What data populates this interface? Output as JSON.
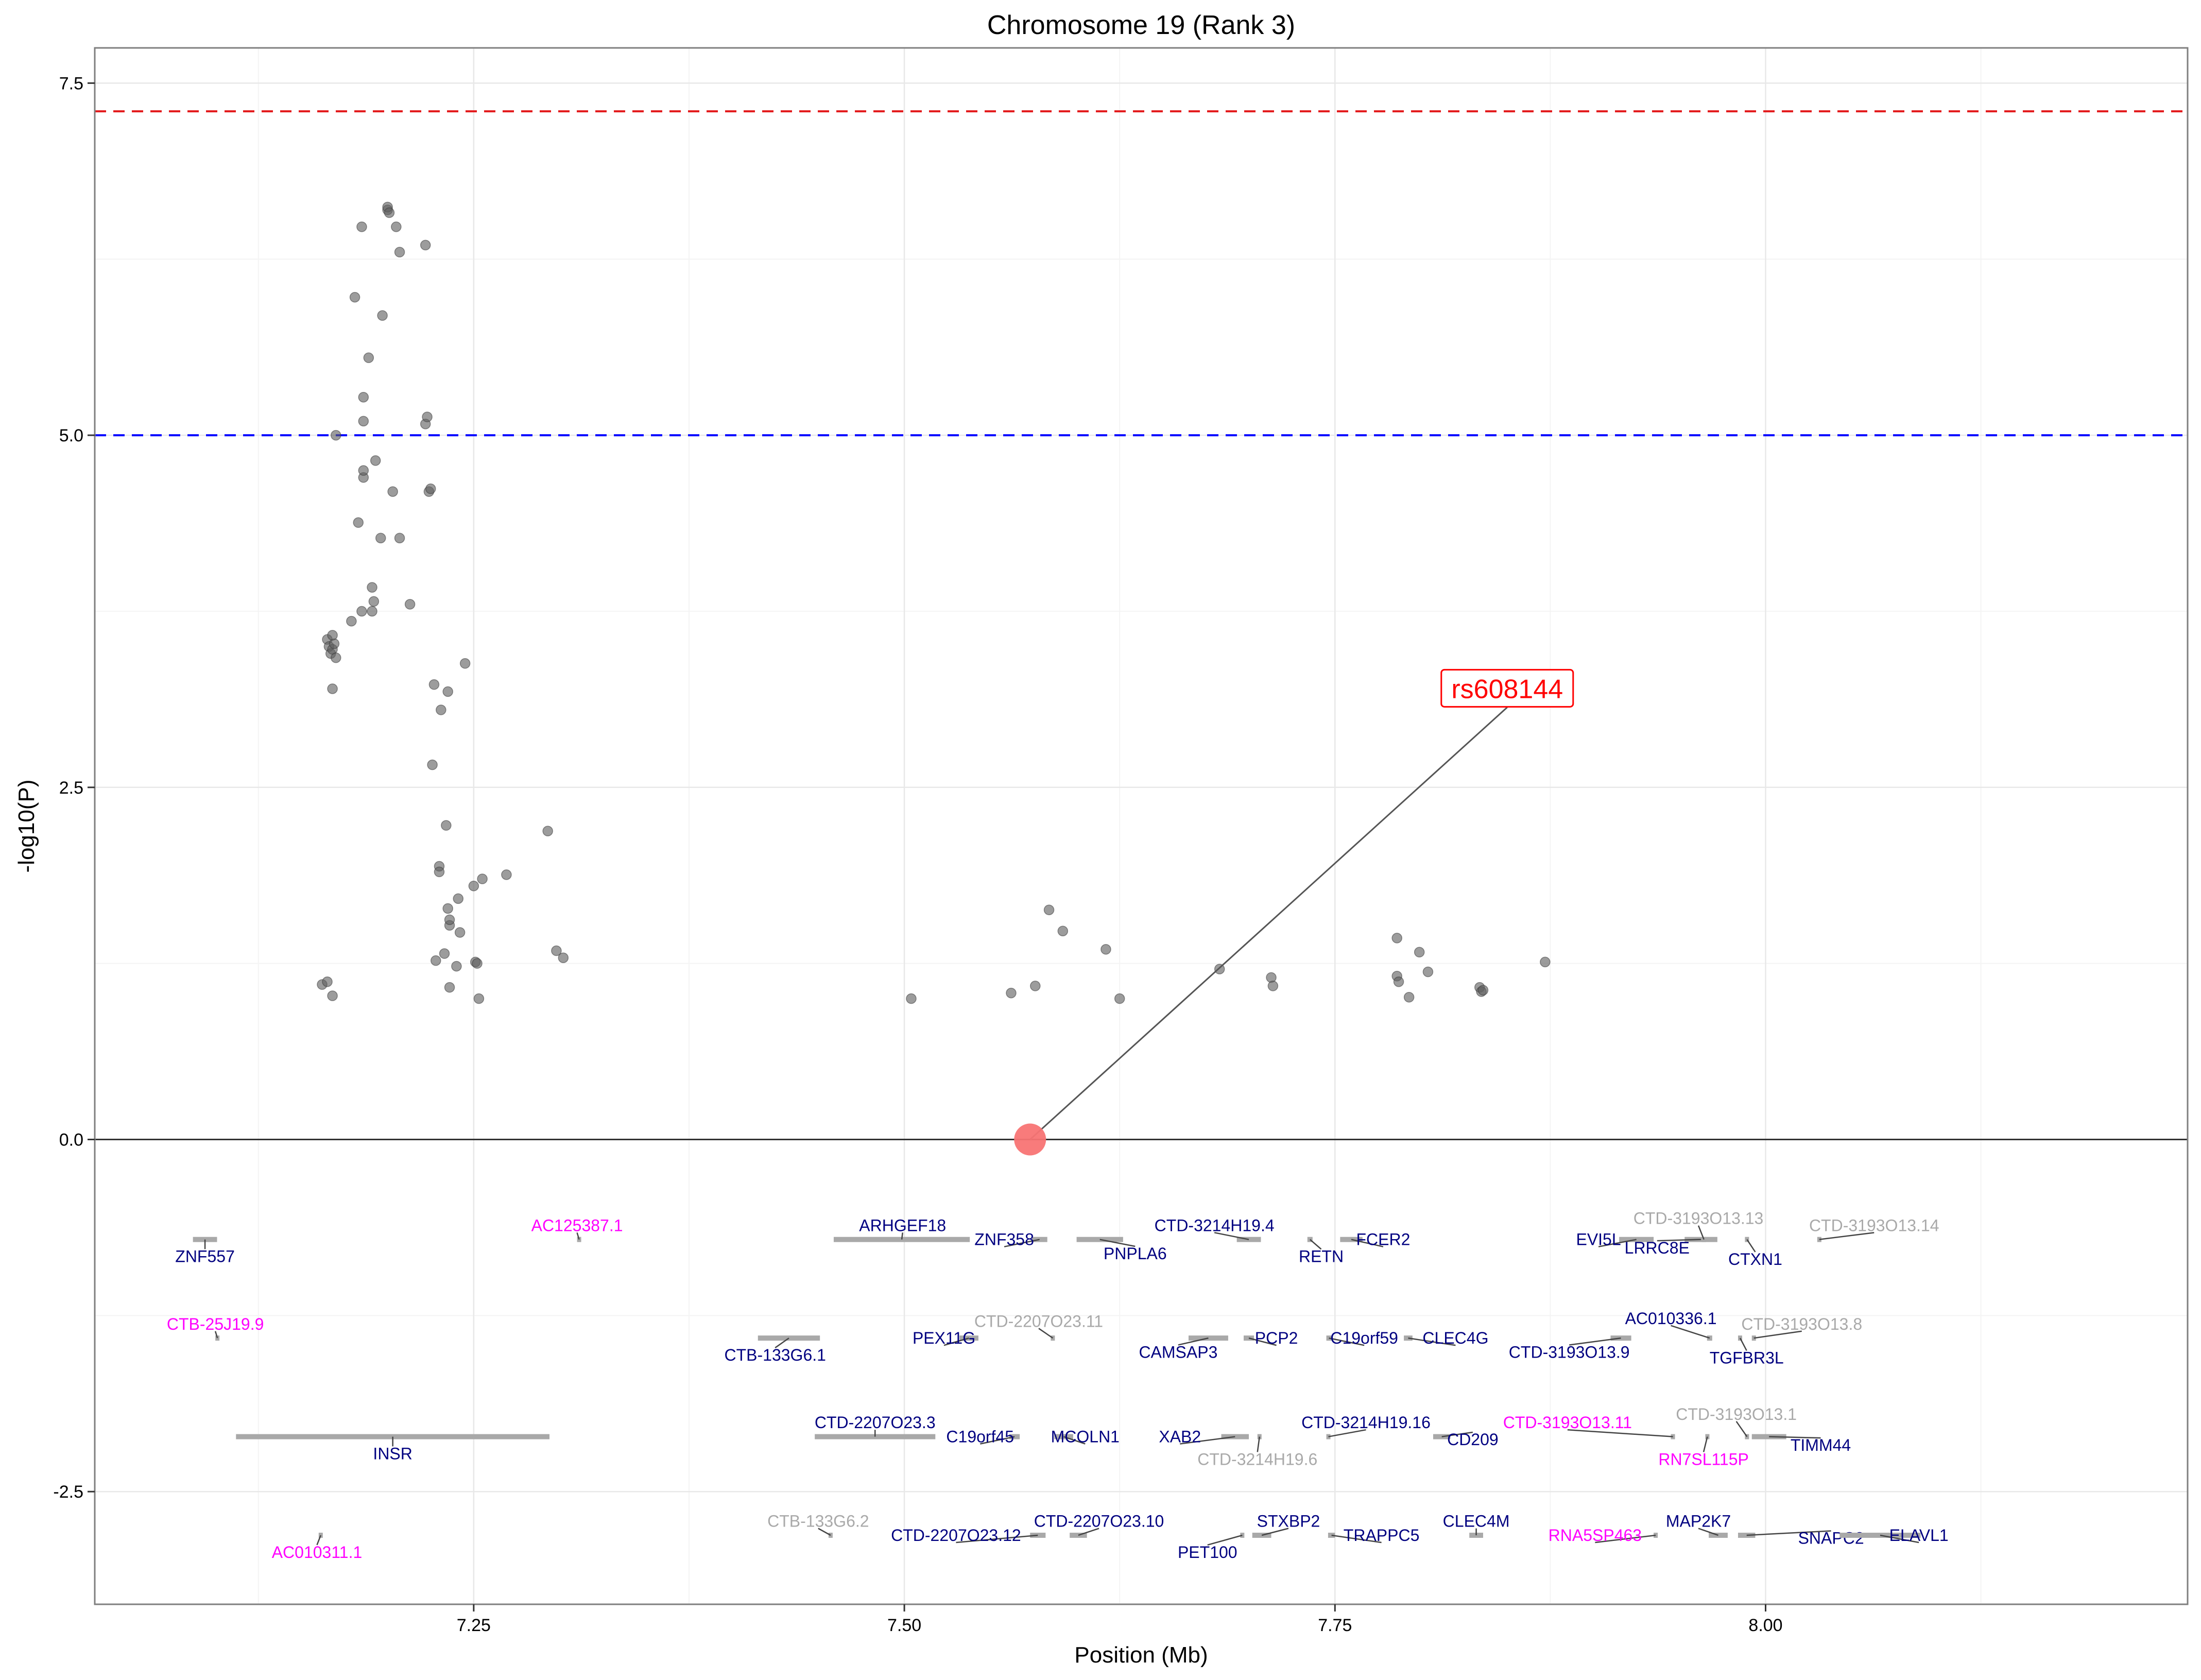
{
  "chart_data": {
    "type": "scatter",
    "title": "Chromosome 19 (Rank 3)",
    "xlabel": "Position (Mb)",
    "ylabel": "-log10(P)",
    "xlim": [
      7.03,
      8.245
    ],
    "ylim": [
      -3.3,
      7.75
    ],
    "x_ticks": [
      7.25,
      7.5,
      7.75,
      8.0
    ],
    "x_tick_labels": [
      "7.25",
      "7.50",
      "7.75",
      "8.00"
    ],
    "y_ticks": [
      -2.5,
      0.0,
      2.5,
      5.0,
      7.5
    ],
    "y_tick_labels": [
      "-2.5",
      "0.0",
      "2.5",
      "5.0",
      "7.5"
    ],
    "grid": true,
    "thresholds": [
      {
        "value": 7.3,
        "color": "#e31a1c",
        "style": "dashed"
      },
      {
        "value": 5.0,
        "color": "#0000ff",
        "style": "dashed"
      }
    ],
    "baseline": 0,
    "lead_snp": {
      "label": "rs608144",
      "x": 7.573,
      "y": 0.0,
      "label_x": 7.85,
      "label_y": 3.2,
      "color": "#f87474"
    },
    "colors": {
      "point": "#5f5f5f",
      "known_gene": "#000080",
      "novel_gene": "#ff00ff",
      "other_gene": "#a9a9a9",
      "gene_bar": "#a9a9a9",
      "label": "#ff0000"
    },
    "points": [
      [
        7.162,
        1.1
      ],
      [
        7.165,
        1.12
      ],
      [
        7.168,
        1.02
      ],
      [
        7.165,
        3.55
      ],
      [
        7.166,
        3.5
      ],
      [
        7.167,
        3.45
      ],
      [
        7.168,
        3.48
      ],
      [
        7.169,
        3.52
      ],
      [
        7.17,
        3.42
      ],
      [
        7.168,
        3.2
      ],
      [
        7.168,
        3.58
      ],
      [
        7.17,
        5.0
      ],
      [
        7.179,
        3.68
      ],
      [
        7.181,
        5.98
      ],
      [
        7.185,
        3.75
      ],
      [
        7.183,
        4.38
      ],
      [
        7.186,
        4.7
      ],
      [
        7.186,
        4.75
      ],
      [
        7.186,
        5.1
      ],
      [
        7.186,
        5.27
      ],
      [
        7.185,
        6.48
      ],
      [
        7.189,
        5.55
      ],
      [
        7.191,
        3.92
      ],
      [
        7.191,
        3.75
      ],
      [
        7.192,
        3.82
      ],
      [
        7.193,
        4.82
      ],
      [
        7.196,
        4.27
      ],
      [
        7.197,
        5.85
      ],
      [
        7.2,
        6.6
      ],
      [
        7.2,
        6.62
      ],
      [
        7.201,
        6.58
      ],
      [
        7.203,
        4.6
      ],
      [
        7.205,
        6.48
      ],
      [
        7.207,
        6.3
      ],
      [
        7.207,
        4.27
      ],
      [
        7.213,
        3.8
      ],
      [
        7.222,
        6.35
      ],
      [
        7.222,
        5.08
      ],
      [
        7.223,
        5.13
      ],
      [
        7.224,
        4.6
      ],
      [
        7.225,
        4.62
      ],
      [
        7.226,
        2.66
      ],
      [
        7.227,
        3.23
      ],
      [
        7.228,
        1.27
      ],
      [
        7.23,
        1.94
      ],
      [
        7.23,
        1.9
      ],
      [
        7.231,
        3.05
      ],
      [
        7.233,
        1.32
      ],
      [
        7.234,
        2.23
      ],
      [
        7.235,
        3.18
      ],
      [
        7.235,
        1.64
      ],
      [
        7.236,
        1.52
      ],
      [
        7.236,
        1.56
      ],
      [
        7.236,
        1.08
      ],
      [
        7.24,
        1.23
      ],
      [
        7.241,
        1.71
      ],
      [
        7.242,
        1.47
      ],
      [
        7.245,
        3.38
      ],
      [
        7.25,
        1.8
      ],
      [
        7.251,
        1.26
      ],
      [
        7.252,
        1.25
      ],
      [
        7.253,
        1.0
      ],
      [
        7.255,
        1.85
      ],
      [
        7.269,
        1.88
      ],
      [
        7.293,
        2.19
      ],
      [
        7.298,
        1.34
      ],
      [
        7.302,
        1.29
      ],
      [
        7.504,
        1.0
      ],
      [
        7.562,
        1.04
      ],
      [
        7.576,
        1.09
      ],
      [
        7.584,
        1.63
      ],
      [
        7.592,
        1.48
      ],
      [
        7.617,
        1.35
      ],
      [
        7.625,
        1.0
      ],
      [
        7.683,
        1.21
      ],
      [
        7.713,
        1.15
      ],
      [
        7.714,
        1.09
      ],
      [
        7.786,
        1.43
      ],
      [
        7.786,
        1.16
      ],
      [
        7.787,
        1.12
      ],
      [
        7.793,
        1.01
      ],
      [
        7.799,
        1.33
      ],
      [
        7.804,
        1.19
      ],
      [
        7.834,
        1.08
      ],
      [
        7.835,
        1.05
      ],
      [
        7.836,
        1.06
      ],
      [
        7.872,
        1.26
      ]
    ],
    "genes": [
      {
        "name": "ZNF557",
        "start": 7.087,
        "end": 7.101,
        "row": 1,
        "label_x": 7.094,
        "label_y": -0.83,
        "color": "#000080"
      },
      {
        "name": "AC125387.1",
        "start": 7.31,
        "end": 7.31,
        "row": 1,
        "label_x": 7.31,
        "label_y": -0.61,
        "color": "#ff00ff"
      },
      {
        "name": "ARHGEF18",
        "start": 7.459,
        "end": 7.538,
        "row": 1,
        "label_x": 7.499,
        "label_y": -0.61,
        "color": "#000080"
      },
      {
        "name": "ZNF358",
        "start": 7.574,
        "end": 7.583,
        "row": 1,
        "label_x": 7.558,
        "label_y": -0.71,
        "color": "#000080"
      },
      {
        "name": "PNPLA6",
        "start": 7.6,
        "end": 7.627,
        "row": 1,
        "label_x": 7.634,
        "label_y": -0.81,
        "color": "#000080"
      },
      {
        "name": "CTD-3214H19.4",
        "start": 7.693,
        "end": 7.707,
        "row": 1,
        "label_x": 7.68,
        "label_y": -0.61,
        "color": "#000080"
      },
      {
        "name": "RETN",
        "start": 7.734,
        "end": 7.737,
        "row": 1,
        "label_x": 7.742,
        "label_y": -0.83,
        "color": "#000080"
      },
      {
        "name": "FCER2",
        "start": 7.753,
        "end": 7.766,
        "row": 1,
        "label_x": 7.778,
        "label_y": -0.71,
        "color": "#000080"
      },
      {
        "name": "EVI5L",
        "start": 7.915,
        "end": 7.935,
        "row": 1,
        "label_x": 7.903,
        "label_y": -0.71,
        "color": "#000080"
      },
      {
        "name": "LRRC8E",
        "start": 7.953,
        "end": 7.972,
        "row": 1,
        "label_x": 7.937,
        "label_y": -0.77,
        "color": "#000080"
      },
      {
        "name": "CTD-3193O13.13",
        "start": 7.963,
        "end": 7.963,
        "row": 1,
        "label_x": 7.961,
        "label_y": -0.56,
        "color": "#a9a9a9"
      },
      {
        "name": "CTXN1",
        "start": 7.988,
        "end": 7.99,
        "row": 1,
        "label_x": 7.994,
        "label_y": -0.85,
        "color": "#000080"
      },
      {
        "name": "CTD-3193O13.14",
        "start": 8.03,
        "end": 8.03,
        "row": 1,
        "label_x": 8.063,
        "label_y": -0.61,
        "color": "#a9a9a9"
      },
      {
        "name": "CTB-25J19.9",
        "start": 7.1,
        "end": 7.1,
        "row": 2,
        "label_x": 7.1,
        "label_y": -1.31,
        "color": "#ff00ff"
      },
      {
        "name": "CTB-133G6.1",
        "start": 7.415,
        "end": 7.451,
        "row": 2,
        "label_x": 7.425,
        "label_y": -1.53,
        "color": "#000080"
      },
      {
        "name": "PEX11G",
        "start": 7.532,
        "end": 7.543,
        "row": 2,
        "label_x": 7.523,
        "label_y": -1.41,
        "color": "#000080"
      },
      {
        "name": "CTD-2207O23.11",
        "start": 7.585,
        "end": 7.585,
        "row": 2,
        "label_x": 7.578,
        "label_y": -1.29,
        "color": "#a9a9a9"
      },
      {
        "name": "CAMSAP3",
        "start": 7.665,
        "end": 7.688,
        "row": 2,
        "label_x": 7.659,
        "label_y": -1.51,
        "color": "#000080"
      },
      {
        "name": "PCP2",
        "start": 7.697,
        "end": 7.703,
        "row": 2,
        "label_x": 7.716,
        "label_y": -1.41,
        "color": "#000080"
      },
      {
        "name": "C19orf59",
        "start": 7.745,
        "end": 7.748,
        "row": 2,
        "label_x": 7.767,
        "label_y": -1.41,
        "color": "#000080"
      },
      {
        "name": "CLEC4G",
        "start": 7.79,
        "end": 7.795,
        "row": 2,
        "label_x": 7.82,
        "label_y": -1.41,
        "color": "#000080"
      },
      {
        "name": "CTD-3193O13.9",
        "start": 7.91,
        "end": 7.922,
        "row": 2,
        "label_x": 7.886,
        "label_y": -1.51,
        "color": "#000080"
      },
      {
        "name": "AC010336.1",
        "start": 7.966,
        "end": 7.969,
        "row": 2,
        "label_x": 7.945,
        "label_y": -1.27,
        "color": "#000080"
      },
      {
        "name": "TGFBR3L",
        "start": 7.984,
        "end": 7.986,
        "row": 2,
        "label_x": 7.989,
        "label_y": -1.55,
        "color": "#000080"
      },
      {
        "name": "CTD-3193O13.8",
        "start": 7.992,
        "end": 7.992,
        "row": 2,
        "label_x": 8.021,
        "label_y": -1.31,
        "color": "#a9a9a9"
      },
      {
        "name": "INSR",
        "start": 7.112,
        "end": 7.294,
        "row": 3,
        "label_x": 7.203,
        "label_y": -2.23,
        "color": "#000080"
      },
      {
        "name": "CTD-2207O23.3",
        "start": 7.448,
        "end": 7.518,
        "row": 3,
        "label_x": 7.483,
        "label_y": -2.01,
        "color": "#000080"
      },
      {
        "name": "C19orf45",
        "start": 7.561,
        "end": 7.567,
        "row": 3,
        "label_x": 7.544,
        "label_y": -2.11,
        "color": "#000080"
      },
      {
        "name": "MCOLN1",
        "start": 7.587,
        "end": 7.598,
        "row": 3,
        "label_x": 7.605,
        "label_y": -2.11,
        "color": "#000080"
      },
      {
        "name": "XAB2",
        "start": 7.684,
        "end": 7.7,
        "row": 3,
        "label_x": 7.66,
        "label_y": -2.11,
        "color": "#000080"
      },
      {
        "name": "CTD-3214H19.6",
        "start": 7.705,
        "end": 7.705,
        "row": 3,
        "label_x": 7.705,
        "label_y": -2.27,
        "color": "#a9a9a9"
      },
      {
        "name": "CTD-3214H19.16",
        "start": 7.745,
        "end": 7.745,
        "row": 3,
        "label_x": 7.768,
        "label_y": -2.01,
        "color": "#000080"
      },
      {
        "name": "CD209",
        "start": 7.807,
        "end": 7.817,
        "row": 3,
        "label_x": 7.83,
        "label_y": -2.13,
        "color": "#000080"
      },
      {
        "name": "CTD-3193O13.11",
        "start": 7.945,
        "end": 7.945,
        "row": 3,
        "label_x": 7.885,
        "label_y": -2.01,
        "color": "#ff00ff"
      },
      {
        "name": "RN7SL115P",
        "start": 7.965,
        "end": 7.965,
        "row": 3,
        "label_x": 7.964,
        "label_y": -2.27,
        "color": "#ff00ff"
      },
      {
        "name": "CTD-3193O13.1",
        "start": 7.988,
        "end": 7.988,
        "row": 3,
        "label_x": 7.983,
        "label_y": -1.95,
        "color": "#a9a9a9"
      },
      {
        "name": "TIMM44",
        "start": 7.992,
        "end": 8.012,
        "row": 3,
        "label_x": 8.032,
        "label_y": -2.17,
        "color": "#000080"
      },
      {
        "name": "AC010311.1",
        "start": 7.16,
        "end": 7.16,
        "row": 4,
        "label_x": 7.159,
        "label_y": -2.93,
        "color": "#ff00ff"
      },
      {
        "name": "CTB-133G6.2",
        "start": 7.456,
        "end": 7.456,
        "row": 4,
        "label_x": 7.45,
        "label_y": -2.71,
        "color": "#a9a9a9"
      },
      {
        "name": "CTD-2207O23.12",
        "start": 7.573,
        "end": 7.582,
        "row": 4,
        "label_x": 7.53,
        "label_y": -2.81,
        "color": "#000080"
      },
      {
        "name": "CTD-2207O23.10",
        "start": 7.596,
        "end": 7.606,
        "row": 4,
        "label_x": 7.613,
        "label_y": -2.71,
        "color": "#000080"
      },
      {
        "name": "PET100",
        "start": 7.695,
        "end": 7.695,
        "row": 4,
        "label_x": 7.676,
        "label_y": -2.93,
        "color": "#000080"
      },
      {
        "name": "STXBP2",
        "start": 7.702,
        "end": 7.713,
        "row": 4,
        "label_x": 7.723,
        "label_y": -2.71,
        "color": "#000080"
      },
      {
        "name": "TRAPPC5",
        "start": 7.746,
        "end": 7.75,
        "row": 4,
        "label_x": 7.777,
        "label_y": -2.81,
        "color": "#000080"
      },
      {
        "name": "CLEC4M",
        "start": 7.828,
        "end": 7.836,
        "row": 4,
        "label_x": 7.832,
        "label_y": -2.71,
        "color": "#000080"
      },
      {
        "name": "RNA5SP463",
        "start": 7.935,
        "end": 7.935,
        "row": 4,
        "label_x": 7.901,
        "label_y": -2.81,
        "color": "#ff00ff"
      },
      {
        "name": "MAP2K7",
        "start": 7.967,
        "end": 7.978,
        "row": 4,
        "label_x": 7.961,
        "label_y": -2.71,
        "color": "#000080"
      },
      {
        "name": "SNAPC2",
        "start": 7.984,
        "end": 7.994,
        "row": 4,
        "label_x": 8.038,
        "label_y": -2.83,
        "color": "#000080"
      },
      {
        "name": "ELAVL1",
        "start": 8.043,
        "end": 8.09,
        "row": 4,
        "label_x": 8.089,
        "label_y": -2.81,
        "color": "#000080"
      }
    ]
  }
}
